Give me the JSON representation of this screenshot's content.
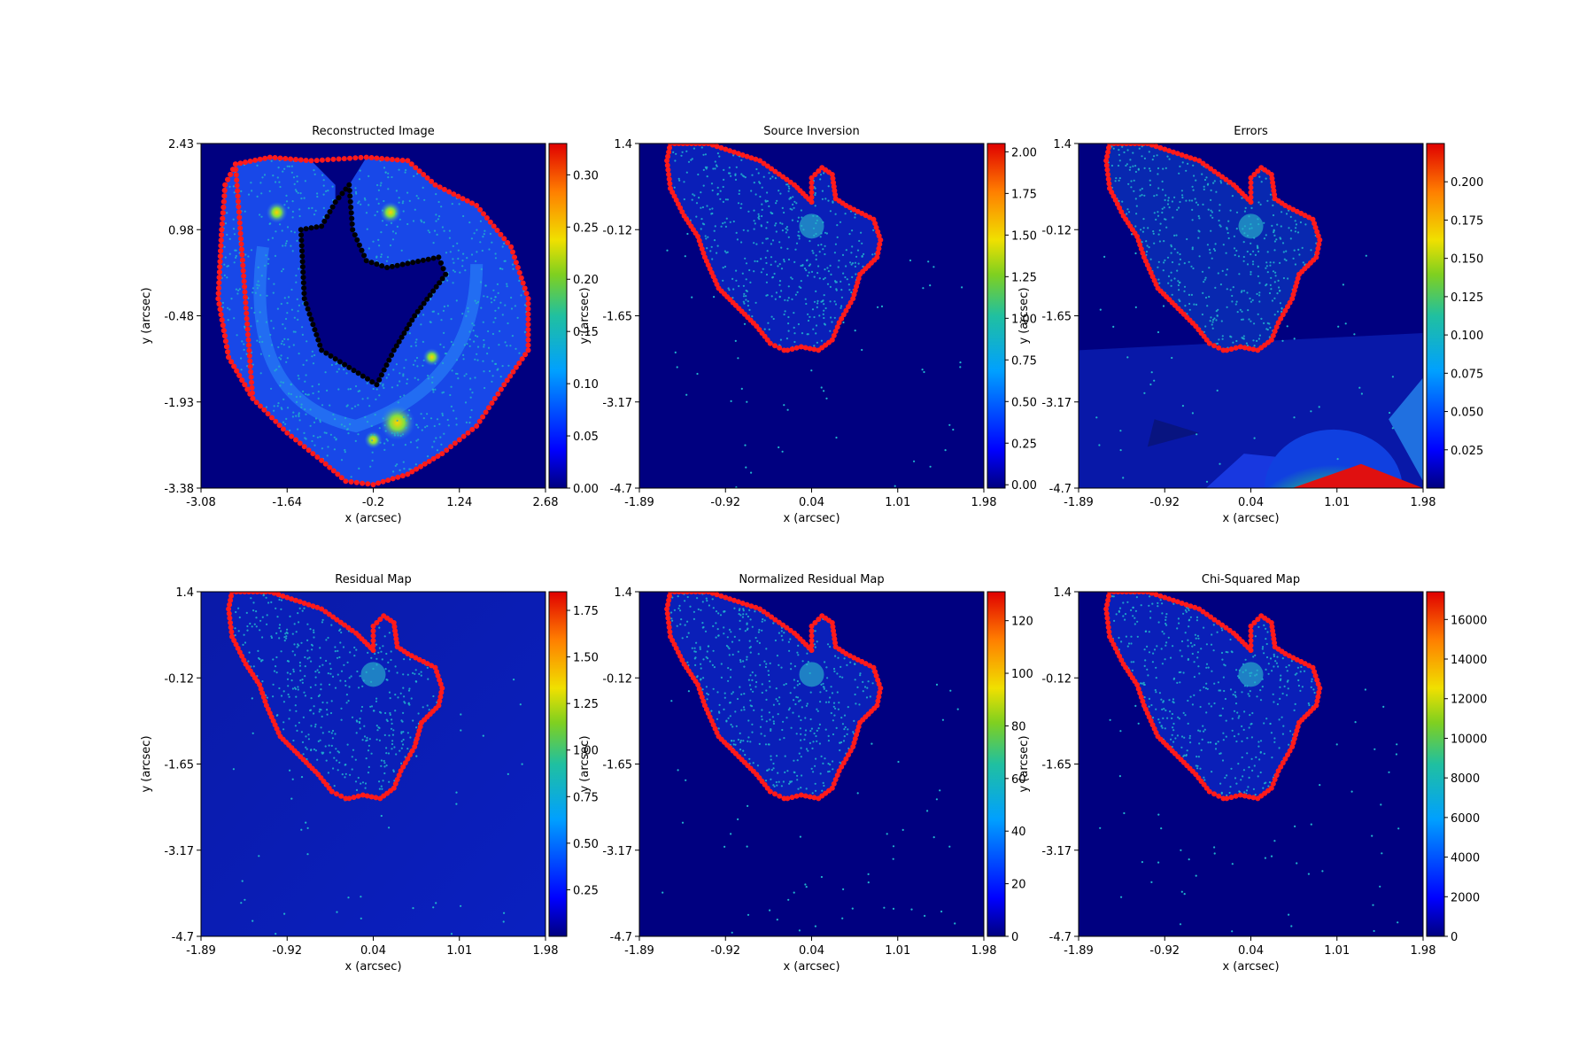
{
  "colors": {
    "background": "#000080",
    "grid_points": "#22b4cc",
    "border_points": "#ff1a1a",
    "colormap": [
      "#00007f",
      "#0000ff",
      "#007fff",
      "#00ffff",
      "#7fff7f",
      "#ffff00",
      "#ff7f00",
      "#ff0000",
      "#7f0000"
    ]
  },
  "chart_data": [
    {
      "type": "heatmap",
      "title": "Reconstructed Image",
      "xlabel": "x (arcsec)",
      "ylabel": "y (arcsec)",
      "xticks": [
        "-3.08",
        "-1.64",
        "-0.2",
        "1.24",
        "2.68"
      ],
      "yticks": [
        "2.43",
        "0.98",
        "-0.48",
        "-1.93",
        "-3.38"
      ],
      "xlim": [
        -3.08,
        2.68
      ],
      "ylim": [
        -3.38,
        2.43
      ],
      "colorbar": {
        "range": [
          0.0,
          0.33
        ],
        "ticks": [
          "0.00",
          "0.05",
          "0.10",
          "0.15",
          "0.20",
          "0.25",
          "0.30"
        ]
      },
      "features": "heart-shaped lensed arc with bright knots near (-1.5, 0.8), (0.0, 0.9), (1.0, -1.2), (0.4, -2.3)"
    },
    {
      "type": "heatmap",
      "title": "Source Inversion",
      "xlabel": "x (arcsec)",
      "ylabel": "y (arcsec)",
      "xticks": [
        "-1.89",
        "-0.92",
        "0.04",
        "1.01",
        "1.98"
      ],
      "yticks": [
        "1.4",
        "-0.12",
        "-1.65",
        "-3.17",
        "-4.7"
      ],
      "xlim": [
        -1.89,
        1.98
      ],
      "ylim": [
        -4.7,
        1.4
      ],
      "colorbar": {
        "range": [
          -0.02,
          2.05
        ],
        "ticks": [
          "0.00",
          "0.25",
          "0.50",
          "0.75",
          "1.00",
          "1.25",
          "1.50",
          "1.75",
          "2.00"
        ]
      }
    },
    {
      "type": "heatmap",
      "title": "Errors",
      "xlabel": "x (arcsec)",
      "ylabel": "y (arcsec)",
      "xticks": [
        "-1.89",
        "-0.92",
        "0.04",
        "1.01",
        "1.98"
      ],
      "yticks": [
        "1.4",
        "-0.12",
        "-1.65",
        "-3.17",
        "-4.7"
      ],
      "xlim": [
        -1.89,
        1.98
      ],
      "ylim": [
        -4.7,
        1.4
      ],
      "colorbar": {
        "range": [
          0.0,
          0.225
        ],
        "ticks": [
          "0.025",
          "0.050",
          "0.075",
          "0.100",
          "0.125",
          "0.150",
          "0.175",
          "0.200"
        ]
      }
    },
    {
      "type": "heatmap",
      "title": "Residual Map",
      "xlabel": "x (arcsec)",
      "ylabel": "y (arcsec)",
      "xticks": [
        "-1.89",
        "-0.92",
        "0.04",
        "1.01",
        "1.98"
      ],
      "yticks": [
        "1.4",
        "-0.12",
        "-1.65",
        "-3.17",
        "-4.7"
      ],
      "xlim": [
        -1.89,
        1.98
      ],
      "ylim": [
        -4.7,
        1.4
      ],
      "colorbar": {
        "range": [
          0.0,
          1.85
        ],
        "ticks": [
          "0.25",
          "0.50",
          "0.75",
          "1.00",
          "1.25",
          "1.50",
          "1.75"
        ]
      }
    },
    {
      "type": "heatmap",
      "title": "Normalized Residual Map",
      "xlabel": "x (arcsec)",
      "ylabel": "y (arcsec)",
      "xticks": [
        "-1.89",
        "-0.92",
        "0.04",
        "1.01",
        "1.98"
      ],
      "yticks": [
        "1.4",
        "-0.12",
        "-1.65",
        "-3.17",
        "-4.7"
      ],
      "xlim": [
        -1.89,
        1.98
      ],
      "ylim": [
        -4.7,
        1.4
      ],
      "colorbar": {
        "range": [
          0,
          131
        ],
        "ticks": [
          "0",
          "20",
          "40",
          "60",
          "80",
          "100",
          "120"
        ]
      }
    },
    {
      "type": "heatmap",
      "title": "Chi-Squared Map",
      "xlabel": "x (arcsec)",
      "ylabel": "y (arcsec)",
      "xticks": [
        "-1.89",
        "-0.92",
        "0.04",
        "1.01",
        "1.98"
      ],
      "yticks": [
        "1.4",
        "-0.12",
        "-1.65",
        "-3.17",
        "-4.7"
      ],
      "xlim": [
        -1.89,
        1.98
      ],
      "ylim": [
        -4.7,
        1.4
      ],
      "colorbar": {
        "range": [
          0,
          17400
        ],
        "ticks": [
          "0",
          "2000",
          "4000",
          "6000",
          "8000",
          "10000",
          "12000",
          "14000",
          "16000"
        ]
      }
    }
  ]
}
